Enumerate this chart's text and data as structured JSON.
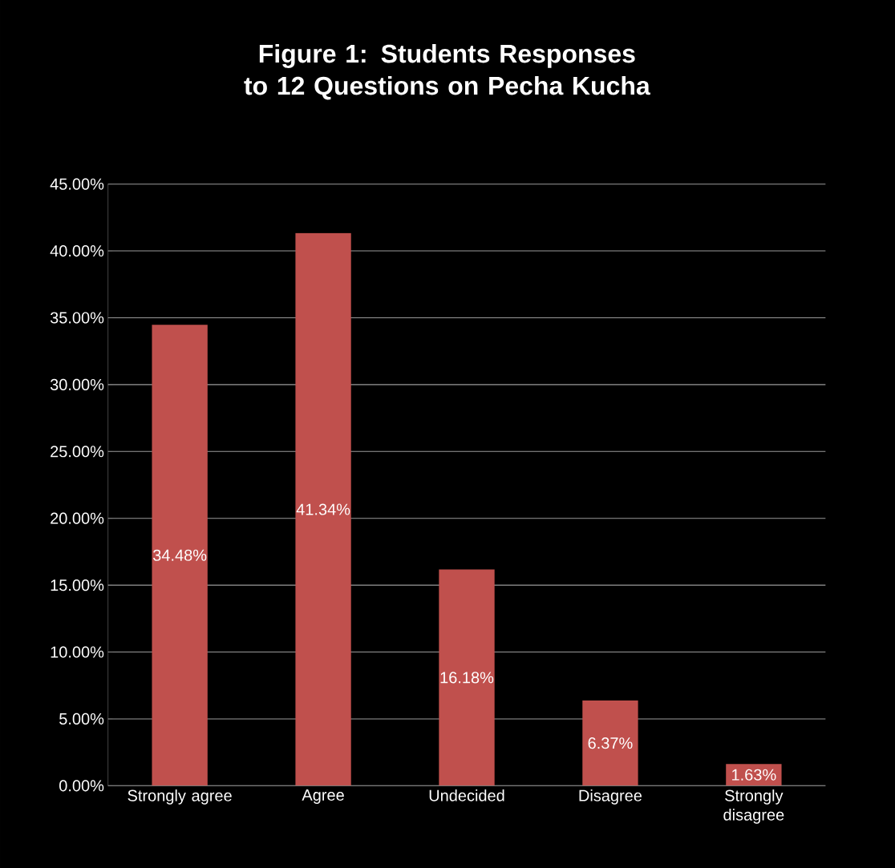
{
  "chart_data": {
    "type": "bar",
    "title": "Figure 1: Students Responses to 12 Questions on Pecha Kucha",
    "categories": [
      "Strongly agree",
      "Agree",
      "Undecided",
      "Disagree",
      "Strongly disagree"
    ],
    "values": [
      34.48,
      41.34,
      16.18,
      6.37,
      1.63
    ],
    "value_labels": [
      "34.48%",
      "41.34%",
      "16.18%",
      "6.37%",
      "1.63%"
    ],
    "color": "#c0504d",
    "ylim": [
      0,
      45
    ],
    "yticks": [
      {
        "value": 0,
        "label": "0.00%"
      },
      {
        "value": 5,
        "label": "5.00%"
      },
      {
        "value": 10,
        "label": "10.00%"
      },
      {
        "value": 15,
        "label": "15.00%"
      },
      {
        "value": 20,
        "label": "20.00%"
      },
      {
        "value": 25,
        "label": "25.00%"
      },
      {
        "value": 30,
        "label": "30.00%"
      },
      {
        "value": 35,
        "label": "35.00%"
      },
      {
        "value": 40,
        "label": "40.00%"
      },
      {
        "value": 45,
        "label": "45.00%"
      }
    ],
    "grid": "y"
  }
}
